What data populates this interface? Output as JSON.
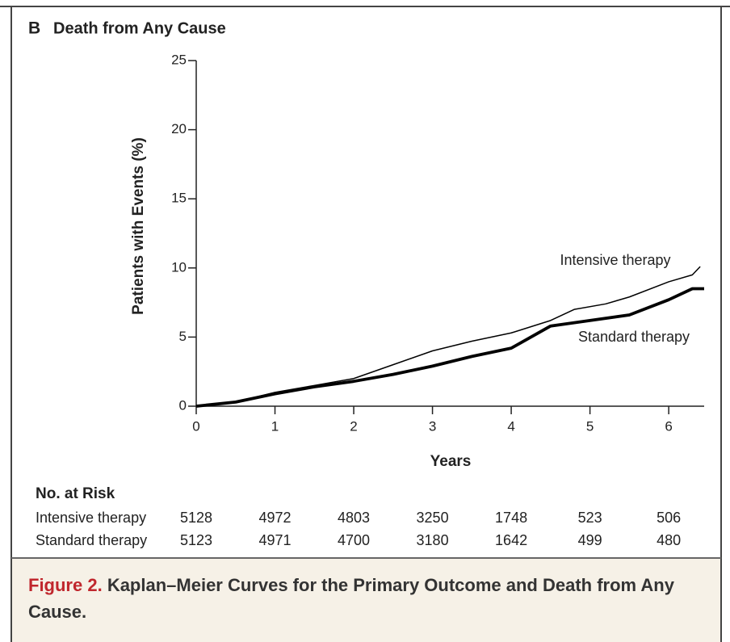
{
  "chart_data": {
    "type": "line",
    "panel_label": "B",
    "title": "Death from Any Cause",
    "xlabel": "Years",
    "ylabel": "Patients with Events (%)",
    "xlim": [
      0,
      6.45
    ],
    "ylim": [
      0,
      25
    ],
    "xticks": [
      0,
      1,
      2,
      3,
      4,
      5,
      6
    ],
    "yticks": [
      0,
      5,
      10,
      15,
      20,
      25
    ],
    "series": [
      {
        "name": "Intensive therapy",
        "color": "#000000",
        "x": [
          0,
          0.5,
          1,
          1.5,
          2,
          2.5,
          3,
          3.5,
          4,
          4.5,
          4.8,
          5.2,
          5.5,
          6,
          6.3,
          6.4
        ],
        "values": [
          0,
          0.3,
          1.0,
          1.5,
          2.0,
          3.0,
          4.0,
          4.7,
          5.3,
          6.2,
          7.0,
          7.4,
          7.9,
          9.0,
          9.5,
          10.1
        ]
      },
      {
        "name": "Standard therapy",
        "color": "#000000",
        "x": [
          0,
          0.5,
          1,
          1.5,
          2,
          2.5,
          3,
          3.5,
          4,
          4.5,
          5,
          5.5,
          6,
          6.3,
          6.45
        ],
        "values": [
          0,
          0.3,
          0.9,
          1.4,
          1.8,
          2.3,
          2.9,
          3.6,
          4.2,
          5.8,
          6.2,
          6.6,
          7.7,
          8.5,
          8.5
        ]
      }
    ],
    "risk_table": {
      "title": "No. at Risk",
      "rows": [
        {
          "label": "Intensive therapy",
          "values": [
            5128,
            4972,
            4803,
            3250,
            1748,
            523,
            506
          ]
        },
        {
          "label": "Standard therapy",
          "values": [
            5123,
            4971,
            4700,
            3180,
            1642,
            499,
            480
          ]
        }
      ]
    }
  },
  "caption": {
    "label": "Figure 2.",
    "text": "Kaplan–Meier Curves for the Primary Outcome and Death from Any Cause."
  }
}
